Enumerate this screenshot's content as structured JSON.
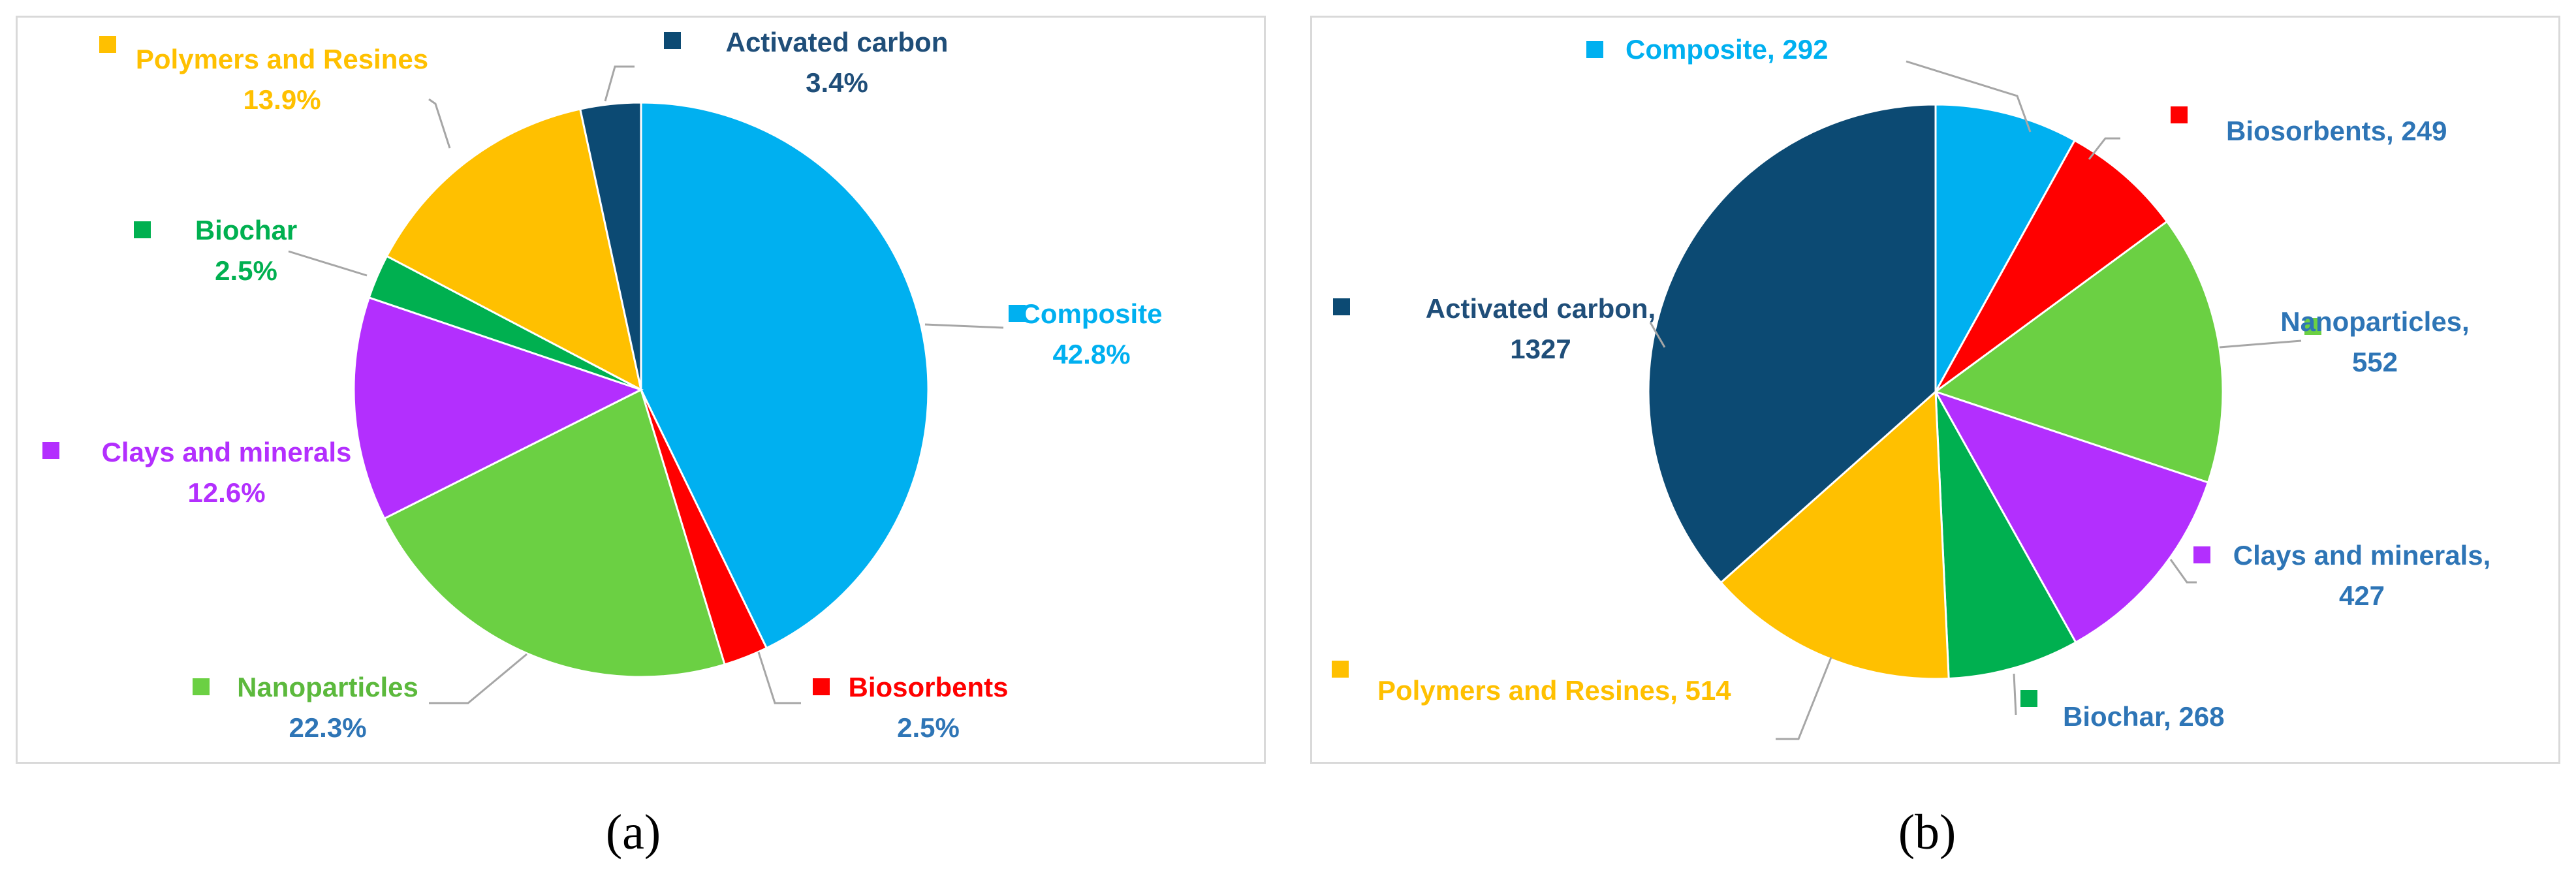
{
  "captions": {
    "a": "(a)",
    "b": "(b)"
  },
  "chart_data": [
    {
      "type": "pie",
      "panel": "a",
      "title": "",
      "start_angle_deg": 0,
      "direction": "clockwise",
      "slices": [
        {
          "label": "Composite",
          "value": 42.8,
          "display": "42.8%",
          "color": "#00b0f0",
          "label_color": "#00b0f0"
        },
        {
          "label": "Biosorbents",
          "value": 2.5,
          "display": "2.5%",
          "color": "#ff0000",
          "label_color": "#ff0000",
          "value_color": "#2e75b6"
        },
        {
          "label": "Nanoparticles",
          "value": 22.3,
          "display": "22.3%",
          "color": "#6bd043",
          "label_color": "#5cb93d",
          "value_color": "#2e75b6"
        },
        {
          "label": "Clays and minerals",
          "value": 12.6,
          "display": "12.6%",
          "color": "#b32ffe",
          "label_color": "#b32ffe"
        },
        {
          "label": "Biochar",
          "value": 2.5,
          "display": "2.5%",
          "color": "#00b050",
          "label_color": "#00b050"
        },
        {
          "label": "Polymers and Resines",
          "value": 13.9,
          "display": "13.9%",
          "color": "#ffc000",
          "label_color": "#ffc000"
        },
        {
          "label": "Activated carbon",
          "value": 3.4,
          "display": "3.4%",
          "color": "#0c4a73",
          "label_color": "#1f4e79"
        }
      ]
    },
    {
      "type": "pie",
      "panel": "b",
      "title": "",
      "start_angle_deg": 0,
      "direction": "clockwise",
      "slices": [
        {
          "label": "Composite",
          "value": 292,
          "display": "Composite, 292",
          "color": "#00b0f0",
          "label_color": "#00b0f0"
        },
        {
          "label": "Biosorbents",
          "value": 249,
          "display": "Biosorbents,  249",
          "color": "#ff0000",
          "label_color": "#2e75b6"
        },
        {
          "label": "Nanoparticles",
          "value": 552,
          "display": "Nanoparticles,|552",
          "color": "#6bd043",
          "label_color": "#2e75b6"
        },
        {
          "label": "Clays and minerals",
          "value": 427,
          "display": "Clays and minerals,|427",
          "color": "#b32ffe",
          "label_color": "#2e75b6"
        },
        {
          "label": "Biochar",
          "value": 268,
          "display": "Biochar, 268",
          "color": "#00b050",
          "label_color": "#2e75b6"
        },
        {
          "label": "Polymers and Resines",
          "value": 514,
          "display": "Polymers and Resines, 514",
          "color": "#ffc000",
          "label_color": "#ffc000"
        },
        {
          "label": "Activated carbon",
          "value": 1327,
          "display": "Activated carbon,|1327",
          "color": "#0c4a73",
          "label_color": "#1f4e79"
        }
      ]
    }
  ]
}
